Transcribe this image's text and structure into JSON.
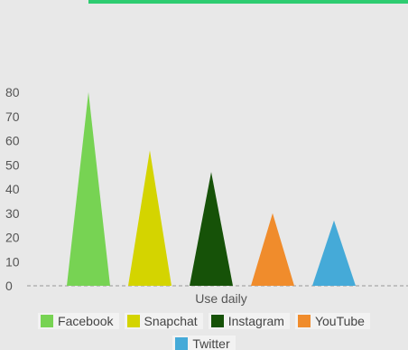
{
  "colors": {
    "accent_bar": "#2ecc71",
    "baseline": "#999999"
  },
  "chart_data": {
    "type": "bar",
    "mark": "triangle",
    "categories": [
      "Use daily"
    ],
    "series": [
      {
        "name": "Facebook",
        "value": 80,
        "color": "#77d353"
      },
      {
        "name": "Snapchat",
        "value": 56,
        "color": "#d4d400"
      },
      {
        "name": "Instagram",
        "value": 47,
        "color": "#165208"
      },
      {
        "name": "YouTube",
        "value": 30,
        "color": "#f08c2c"
      },
      {
        "name": "Twitter",
        "value": 27,
        "color": "#45aad8"
      }
    ],
    "yticks": [
      "0",
      "10",
      "20",
      "30",
      "40",
      "50",
      "60",
      "70",
      "80"
    ],
    "ylim": [
      0,
      80
    ],
    "xlabel": "Use daily",
    "legend_placement": "bottom",
    "grid": false
  }
}
